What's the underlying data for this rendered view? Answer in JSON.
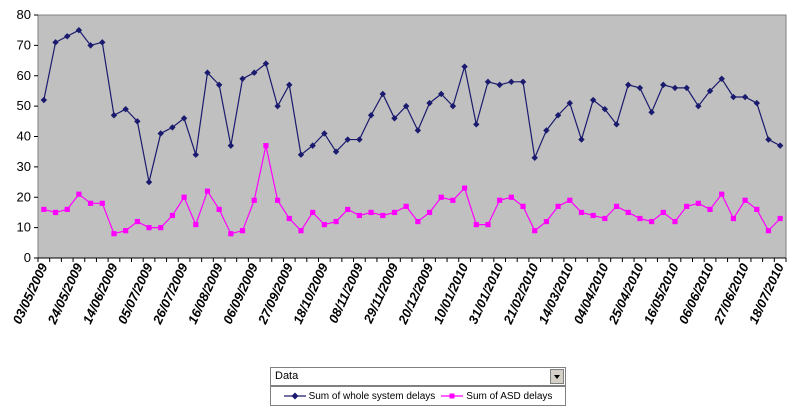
{
  "chart_data": {
    "type": "line",
    "title": "",
    "xlabel": "",
    "ylabel": "",
    "ylim": [
      0,
      80
    ],
    "yticks": [
      0,
      10,
      20,
      30,
      40,
      50,
      60,
      70,
      80
    ],
    "grid": false,
    "legend_placement": "bottom",
    "x_tick_labels": [
      "03/05/2009",
      "24/05/2009",
      "14/06/2009",
      "05/07/2009",
      "26/07/2009",
      "16/08/2009",
      "06/09/2009",
      "27/09/2009",
      "18/10/2009",
      "08/11/2009",
      "29/11/2009",
      "20/12/2009",
      "10/01/2010",
      "31/01/2010",
      "21/02/2010",
      "14/03/2010",
      "04/04/2010",
      "25/04/2010",
      "16/05/2010",
      "06/06/2010",
      "27/06/2010",
      "18/07/2010"
    ],
    "x_tick_every": 3,
    "series": [
      {
        "name": "Sum of whole system delays",
        "color": "#1a1a6e",
        "marker": "diamond",
        "values": [
          52,
          71,
          73,
          75,
          70,
          71,
          47,
          49,
          45,
          25,
          41,
          43,
          46,
          34,
          61,
          57,
          37,
          59,
          61,
          64,
          50,
          57,
          34,
          37,
          41,
          35,
          39,
          39,
          47,
          54,
          46,
          50,
          42,
          51,
          54,
          50,
          63,
          44,
          58,
          57,
          58,
          58,
          33,
          42,
          47,
          51,
          39,
          52,
          49,
          44,
          57,
          56,
          48,
          57,
          56,
          56,
          50,
          55,
          59,
          53,
          53,
          51,
          39,
          37
        ]
      },
      {
        "name": "Sum of ASD delays",
        "color": "#ff00ff",
        "marker": "square",
        "values": [
          16,
          15,
          16,
          21,
          18,
          18,
          8,
          9,
          12,
          10,
          10,
          14,
          20,
          11,
          22,
          16,
          8,
          9,
          19,
          37,
          19,
          13,
          9,
          15,
          11,
          12,
          16,
          14,
          15,
          14,
          15,
          17,
          12,
          15,
          20,
          19,
          23,
          11,
          11,
          19,
          20,
          17,
          9,
          12,
          17,
          19,
          15,
          14,
          13,
          17,
          15,
          13,
          12,
          15,
          12,
          17,
          18,
          16,
          21,
          13,
          19,
          16,
          9,
          13
        ]
      }
    ]
  },
  "pivot_field": {
    "label": "Data"
  },
  "colors": {
    "plot_background": "#c0c0c0"
  }
}
